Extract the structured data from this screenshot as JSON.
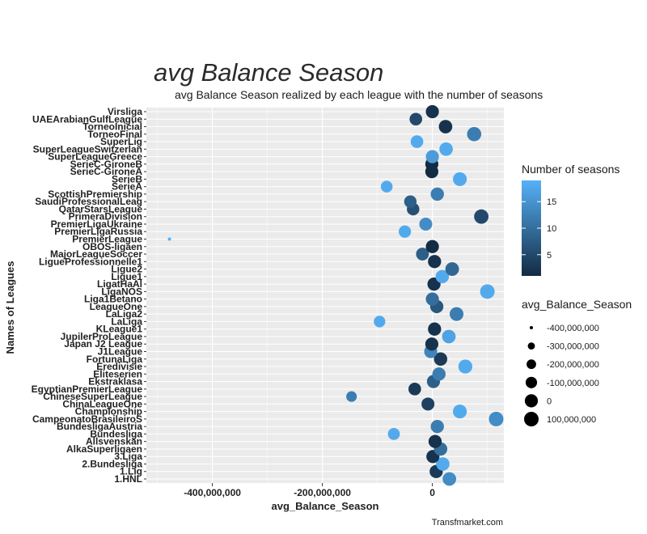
{
  "chart_data": {
    "type": "scatter",
    "title": "avg Balance Season",
    "subtitle": "avg Balance Season realized by each league with the number of seasons",
    "xlabel": "avg_Balance_Season",
    "ylabel": "Names of Leagues",
    "caption": "Transfmarket.com",
    "xlim": [
      -520000000,
      130000000
    ],
    "xticks": [
      -400000000,
      -200000000,
      0
    ],
    "xtick_labels": [
      "-400,000,000",
      "-200,000,000",
      "0"
    ],
    "grid": true,
    "categories": [
      "1.HNL",
      "1.Lig",
      "2.Bundesliga",
      "3.Liga",
      "AlkaSuperligaen",
      "Allsvenskan",
      "Bundesliga",
      "BundesligaAustria",
      "CampeonatoBrasileiroS",
      "Championship",
      "ChinaLeagueOne",
      "ChineseSuperLeague",
      "EgyptianPremierLeague",
      "Ekstraklasa",
      "Eliteserien",
      "Eredivisie",
      "FortunaLiga",
      "J1League",
      "Japan J2 League",
      "JupilerProLeague",
      "KLeague1",
      "LaLiga",
      "LaLiga2",
      "LeagueOne",
      "Liga1Betano",
      "LigaNOS",
      "LigatHaAl",
      "Ligue1",
      "Ligue2",
      "LigueProfessionnelle1",
      "MajorLeagueSoccer",
      "OBOS-ligaen",
      "PremierLeague",
      "PremierLigaRussia",
      "PremierLigaUkraine",
      "PrimeraDivision",
      "QatarStarsLeague",
      "SaudiProfessionalLeag",
      "ScottishPremiership",
      "SerieA",
      "SerieB",
      "SerieC-GironeA",
      "SerieC-GironeB",
      "SuperLeagueGreece",
      "SuperLeagueSwitzerlan",
      "SuperLig",
      "TorneoFinal",
      "TorneoInicial",
      "UAEArabianGulfLeague",
      "Virsliga"
    ],
    "x": [
      31000000,
      7000000,
      19000000,
      1000000,
      15000000,
      5000000,
      -70000000,
      9000000,
      116000000,
      50000000,
      -8000000,
      -147000000,
      -32000000,
      2000000,
      12000000,
      60000000,
      15000000,
      -3000000,
      -1000000,
      30000000,
      4000000,
      -96000000,
      44000000,
      8000000,
      0,
      100000000,
      3000000,
      18000000,
      36000000,
      4000000,
      -18000000,
      0,
      -478000000,
      -50000000,
      -12000000,
      89000000,
      -35000000,
      -40000000,
      9000000,
      -83000000,
      50000000,
      -1000000,
      -1000000,
      0,
      25000000,
      -28000000,
      76000000,
      24000000,
      -30000000,
      0
    ],
    "seasons": [
      14,
      3,
      18,
      2,
      10,
      2,
      18,
      12,
      14,
      18,
      4,
      12,
      3,
      8,
      12,
      18,
      3,
      13,
      2,
      17,
      2,
      18,
      12,
      7,
      10,
      18,
      2,
      18,
      9,
      2,
      8,
      1,
      19,
      18,
      14,
      5,
      6,
      8,
      12,
      18,
      18,
      1,
      1,
      16,
      18,
      18,
      12,
      2,
      5,
      2
    ],
    "size_legend": {
      "title": "avg_Balance_Season",
      "labels": [
        "-400,000,000",
        "-300,000,000",
        "-200,000,000",
        "-100,000,000",
        "0",
        "100,000,000"
      ],
      "values": [
        -400000000,
        -300000000,
        -200000000,
        -100000000,
        0,
        100000000
      ]
    },
    "color_legend": {
      "title": "Number of seasons",
      "labels": [
        "15",
        "10",
        "5"
      ],
      "values": [
        15,
        10,
        5
      ],
      "range": [
        1,
        19
      ],
      "low_color": "#132b43",
      "high_color": "#56b1f7"
    }
  }
}
